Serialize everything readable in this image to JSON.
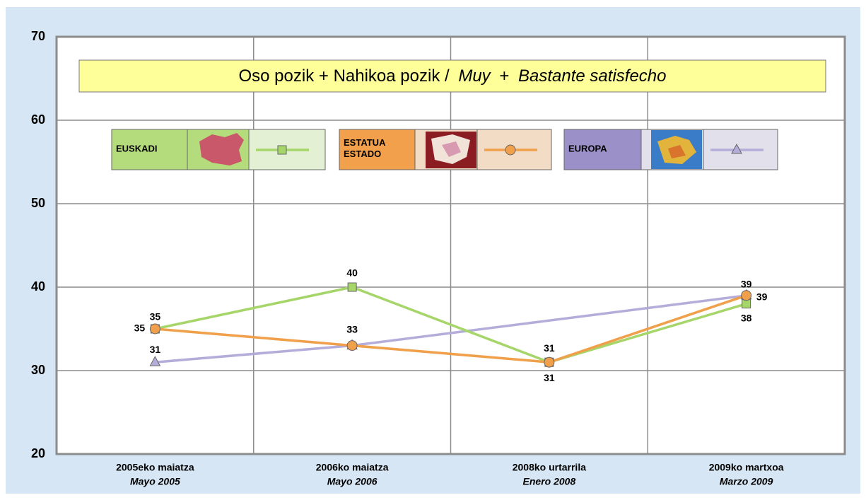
{
  "chart_data": {
    "type": "line",
    "title": [
      "Oso pozik + Nahikoa pozik /",
      "Muy",
      "+",
      "Bastante satisfecho"
    ],
    "categories": [
      "2005eko maiatza",
      "2006ko maiatza",
      "2008ko urtarrila",
      "2009ko martxoa"
    ],
    "categories_sub": [
      "Mayo 2005",
      "Mayo 2006",
      "Enero 2008",
      "Marzo 2009"
    ],
    "ylim": [
      20,
      70
    ],
    "yticks": [
      20,
      30,
      40,
      50,
      60,
      70
    ],
    "grid": true,
    "connect_gaps": true,
    "series": [
      {
        "name": "EUSKADI",
        "color": "#a6d56a",
        "marker": "square",
        "values": [
          35,
          40,
          31,
          38
        ]
      },
      {
        "name": "ESTATUA ESTADO",
        "color": "#f0a04b",
        "marker": "circle",
        "values": [
          35,
          33,
          31,
          39
        ]
      },
      {
        "name": "EUROPA",
        "color": "#b4acd9",
        "marker": "triangle",
        "values": [
          31,
          33,
          null,
          39
        ]
      }
    ]
  }
}
